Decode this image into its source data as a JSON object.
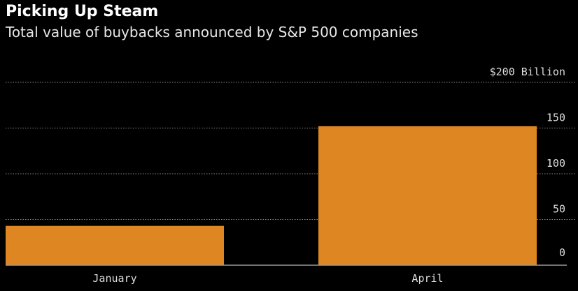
{
  "chart_data": {
    "type": "bar",
    "title": "Picking Up Steam",
    "subtitle": "Total value of buybacks announced by S&P 500 companies",
    "categories": [
      "January",
      "April"
    ],
    "values": [
      43,
      152
    ],
    "ylabel": "",
    "xlabel": "",
    "y_unit_label": "$200 Billion",
    "yticks": [
      0,
      50,
      100,
      150,
      200
    ],
    "ytick_labels": [
      "0",
      "50",
      "100",
      "150",
      "$200 Billion"
    ],
    "ylim": [
      0,
      200
    ],
    "grid": true,
    "bar_color": "#de8722"
  }
}
